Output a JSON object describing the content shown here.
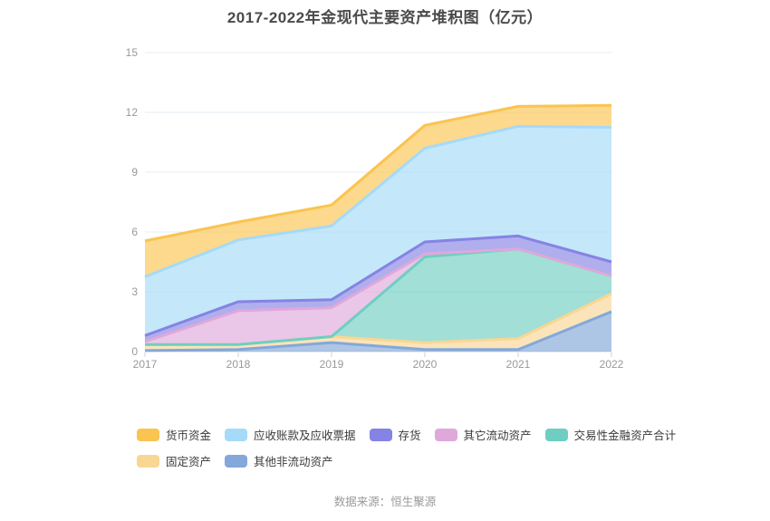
{
  "title": "2017-2022年金现代主要资产堆积图（亿元）",
  "footer": "数据来源：恒生聚源",
  "chart_data": {
    "type": "area",
    "stacked": true,
    "title": "2017-2022年金现代主要资产堆积图（亿元）",
    "x": [
      "2017",
      "2018",
      "2019",
      "2020",
      "2021",
      "2022"
    ],
    "y_ticks": [
      0,
      3,
      6,
      9,
      12,
      15
    ],
    "ylim": [
      0,
      15
    ],
    "grid": true,
    "legend_position": "bottom",
    "unit": "亿元",
    "stack_note": "series listed in legend order; rendered stack is bottom-to-top in reverse of this list",
    "series": [
      {
        "key": "monetary-funds",
        "name": "货币资金",
        "color": "#FAC450",
        "values": [
          1.8,
          0.9,
          1.05,
          1.15,
          1.0,
          1.1
        ]
      },
      {
        "key": "receivables-and-notes",
        "name": "应收账款及应收票据",
        "color": "#A5DAF8",
        "values": [
          2.95,
          3.1,
          3.7,
          4.7,
          5.5,
          6.75
        ]
      },
      {
        "key": "inventory",
        "name": "存货",
        "color": "#8583E4",
        "values": [
          0.3,
          0.45,
          0.4,
          0.6,
          0.65,
          0.7
        ]
      },
      {
        "key": "other-current-assets",
        "name": "其它流动资产",
        "color": "#DFA8DB",
        "values": [
          0.15,
          1.7,
          1.45,
          0.15,
          0.0,
          0.0
        ]
      },
      {
        "key": "trading-financial-assets",
        "name": "交易性金融资产合计",
        "color": "#6FCEC2",
        "values": [
          0.0,
          0.0,
          0.0,
          4.3,
          4.5,
          0.9
        ]
      },
      {
        "key": "fixed-assets",
        "name": "固定资产",
        "color": "#F9D693",
        "values": [
          0.3,
          0.25,
          0.3,
          0.35,
          0.55,
          0.9
        ]
      },
      {
        "key": "other-non-current-assets",
        "name": "其他非流动资产",
        "color": "#83A8D9",
        "values": [
          0.05,
          0.1,
          0.45,
          0.1,
          0.1,
          2.0
        ]
      }
    ],
    "legend_rows": [
      [
        0,
        1,
        2,
        3,
        4
      ],
      [
        5,
        6
      ]
    ]
  },
  "style": {
    "area_opacity": 0.65,
    "line_width": 3,
    "grid_color": "#e6ecf5",
    "axis_color": "#ccd1d9",
    "label_color": "#999999"
  }
}
